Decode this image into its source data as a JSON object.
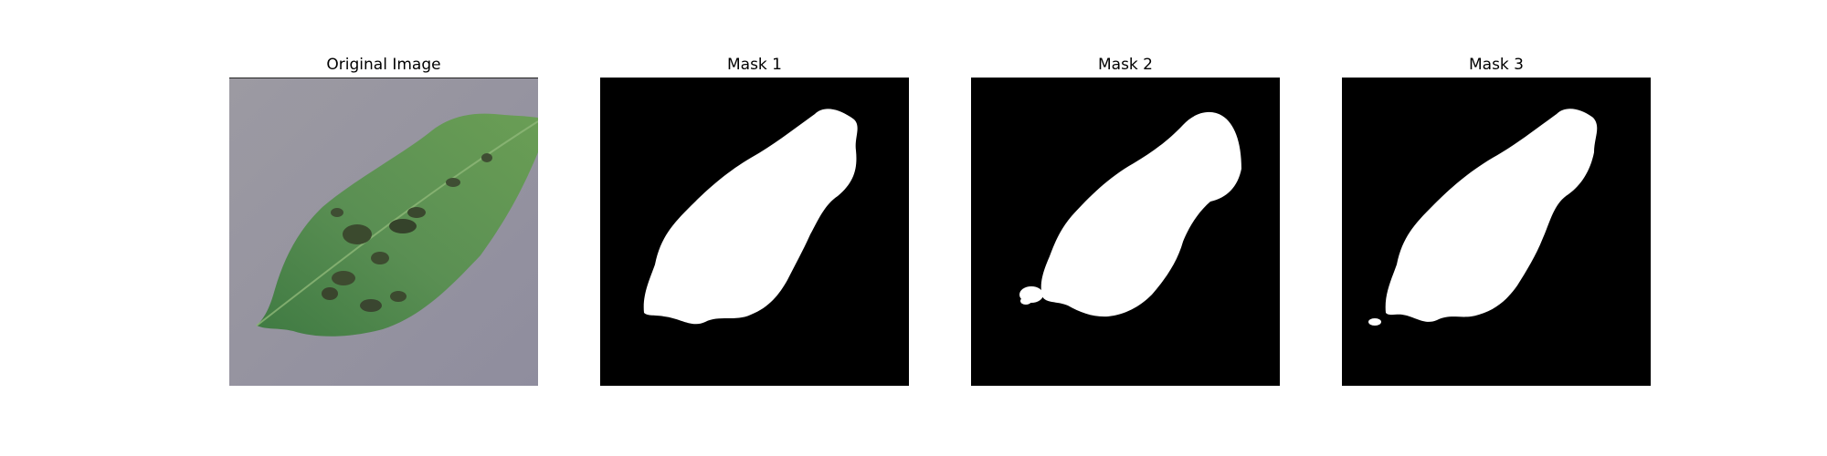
{
  "figure": {
    "panels": [
      {
        "title": "Original Image",
        "kind": "photo",
        "subject": "leaf"
      },
      {
        "title": "Mask 1",
        "kind": "mask"
      },
      {
        "title": "Mask 2",
        "kind": "mask"
      },
      {
        "title": "Mask 3",
        "kind": "mask"
      }
    ]
  },
  "colors": {
    "background": "#9a98a2",
    "leaf_base": "#4f8a45",
    "leaf_light": "#7fb06a",
    "leaf_spot": "#3c4b2d",
    "mask_foreground": "#ffffff",
    "mask_background": "#000000"
  }
}
